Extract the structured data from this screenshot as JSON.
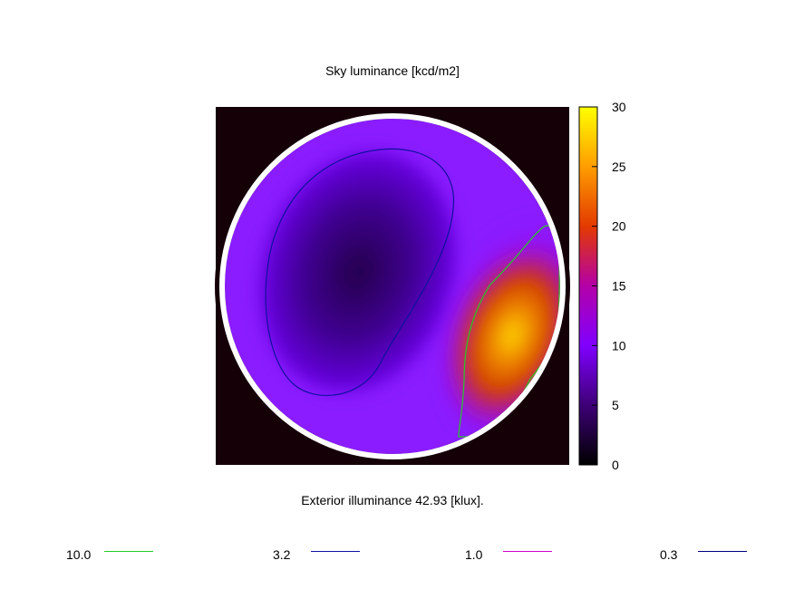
{
  "chart_data": {
    "type": "heatmap",
    "title": "Sky luminance [kcd/m2]",
    "subtitle": "Exterior illuminance 42.93 [klux].",
    "colorbar": {
      "range": [
        0,
        30
      ],
      "ticks": [
        "0",
        "5",
        "10",
        "15",
        "20",
        "25",
        "30"
      ],
      "colormap": [
        "#000000",
        "#3d0077",
        "#8000ff",
        "#b400a8",
        "#e33a00",
        "#ff9d00",
        "#ffff00"
      ]
    },
    "peak_value": 30,
    "background_value": 8,
    "contour_legend": [
      {
        "label": "10.0",
        "color": "#22cc22"
      },
      {
        "label": "3.2",
        "color": "#1010a0"
      },
      {
        "label": "1.0",
        "color": "#d000d0"
      },
      {
        "label": "0.3",
        "color": "#000080"
      }
    ]
  }
}
